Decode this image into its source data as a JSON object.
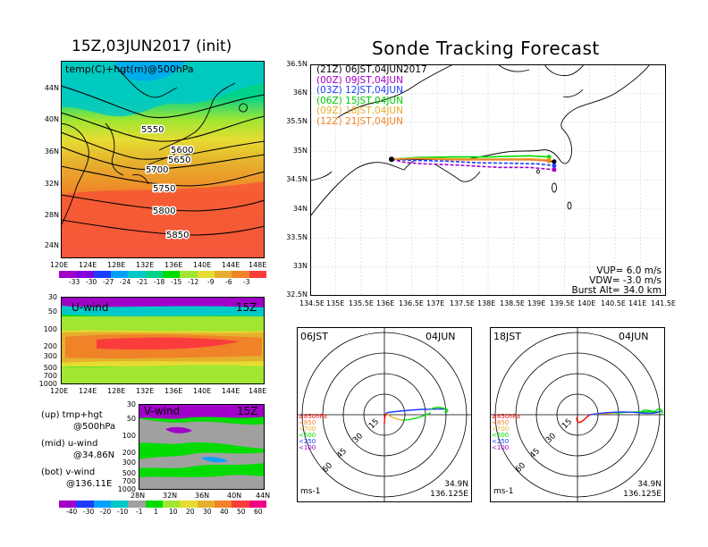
{
  "left_title": "15Z,03JUN2017 (init)",
  "right_title": "Sonde Tracking Forecast",
  "map500": {
    "label": "temp(C)+hgt(m)@500hPa",
    "lat_ticks": [
      "44N",
      "40N",
      "36N",
      "32N",
      "28N",
      "24N"
    ],
    "lon_ticks": [
      "120E",
      "124E",
      "128E",
      "132E",
      "136E",
      "140E",
      "144E",
      "148E"
    ],
    "contours": [
      "5550",
      "5600",
      "5650",
      "5700",
      "5750",
      "5800",
      "5850"
    ],
    "colorbar": [
      "-33",
      "-30",
      "-27",
      "-24",
      "-21",
      "-18",
      "-15",
      "-12",
      "-9",
      "-6",
      "-3"
    ]
  },
  "uwind": {
    "label": "U-wind",
    "time": "15Z",
    "p_ticks": [
      "30",
      "50",
      "100",
      "200",
      "300",
      "500",
      "700",
      "1000"
    ],
    "lon_ticks": [
      "120E",
      "124E",
      "128E",
      "132E",
      "136E",
      "140E",
      "144E",
      "148E"
    ]
  },
  "vwind": {
    "label": "V-wind",
    "time": "15Z",
    "p_ticks": [
      "30",
      "50",
      "100",
      "200",
      "300",
      "500",
      "700",
      "1000"
    ],
    "lat_ticks": [
      "28N",
      "32N",
      "36N",
      "40N",
      "44N"
    ]
  },
  "legend": {
    "up1": "(up) tmp+hgt",
    "up2": "@500hPa",
    "mid1": "(mid) u-wind",
    "mid2": "@34.86N",
    "bot1": "(bot) v-wind",
    "bot2": "@136.11E"
  },
  "wind_colorbar": [
    "-40",
    "-30",
    "-20",
    "-10",
    "-1",
    "1",
    "10",
    "20",
    "30",
    "40",
    "50",
    "60"
  ],
  "track_map": {
    "lat_ticks": [
      "36.5N",
      "36N",
      "35.5N",
      "35N",
      "34.5N",
      "34N",
      "33.5N",
      "33N",
      "32.5N"
    ],
    "lon_ticks": [
      "134.5E",
      "135E",
      "135.5E",
      "136E",
      "136.5E",
      "137E",
      "137.5E",
      "138E",
      "138.5E",
      "139E",
      "139.5E",
      "140E",
      "140.5E",
      "141E",
      "141.5E"
    ],
    "vup": "VUP=  6.0  m/s",
    "vdw": "VDW= -3.0  m/s",
    "burst": "Burst Alt= 34.0  km"
  },
  "chart_data": {
    "type": "line",
    "title": "Sonde Tracking Forecast",
    "xlabel": "",
    "ylabel": "",
    "xlim": [
      134.5,
      141.5
    ],
    "ylim": [
      32.5,
      36.5
    ],
    "series": [
      {
        "name": "(21Z)  06JST,04JUN2017",
        "color": "#000000",
        "x": [
          136.1,
          136.6,
          137.3,
          138.2,
          138.85,
          139.3
        ],
        "y": [
          34.86,
          34.86,
          34.86,
          34.86,
          34.86,
          34.82
        ]
      },
      {
        "name": "(00Z)  09JST,04JUN",
        "color": "#a000c8",
        "x": [
          136.1,
          136.4,
          136.8,
          137.4,
          138.2,
          138.8,
          139.3
        ],
        "y": [
          34.86,
          34.8,
          34.78,
          34.76,
          34.72,
          34.72,
          34.68
        ]
      },
      {
        "name": "(03Z)  12JST,04JUN",
        "color": "#1e3cff",
        "x": [
          136.1,
          136.5,
          137.1,
          137.8,
          138.5,
          139.0,
          139.3
        ],
        "y": [
          34.86,
          34.84,
          34.83,
          34.8,
          34.79,
          34.78,
          34.75
        ]
      },
      {
        "name": "(06Z)  15JST,04JUN",
        "color": "#00dc00",
        "x": [
          136.1,
          136.6,
          137.3,
          138.0,
          138.8,
          139.2
        ],
        "y": [
          34.86,
          34.89,
          34.9,
          34.9,
          34.92,
          34.9
        ]
      },
      {
        "name": "(09Z)  18JST,04JUN",
        "color": "#e6af2d",
        "x": [
          136.1,
          136.6,
          137.3,
          138.0,
          138.8,
          139.2
        ],
        "y": [
          34.86,
          34.88,
          34.87,
          34.86,
          34.87,
          34.85
        ]
      },
      {
        "name": "(12Z)  21JST,04JUN",
        "color": "#f08228",
        "x": [
          136.1,
          136.6,
          137.3,
          138.0,
          138.8,
          139.2
        ],
        "y": [
          34.86,
          34.87,
          34.85,
          34.85,
          34.85,
          34.83
        ]
      }
    ]
  },
  "polar1": {
    "time": "06JST",
    "date": "04JUN",
    "lat": "34.9N",
    "lon": "136.125E",
    "unit": "ms-1",
    "rings": [
      "15",
      "30",
      "45",
      "60"
    ],
    "levels": [
      "≥850hPa",
      "<850",
      "<700",
      "<500",
      "<250",
      "<100"
    ]
  },
  "polar2": {
    "time": "18JST",
    "date": "04JUN",
    "lat": "34.9N",
    "lon": "136.125E",
    "unit": "ms-1",
    "rings": [
      "15",
      "30",
      "45",
      "60"
    ],
    "levels": [
      "≥850hPa",
      "<850",
      "<700",
      "<500",
      "<250",
      "<100"
    ]
  },
  "colors": {
    "level_colors": [
      "#ff0000",
      "#f08228",
      "#e6af2d",
      "#00dc00",
      "#1e3cff",
      "#a000c8"
    ],
    "temp_colorbar": [
      "#a000c8",
      "#8200dc",
      "#1e3cff",
      "#00a0ff",
      "#00c8c8",
      "#00d28c",
      "#00dc00",
      "#a0e632",
      "#e6dc32",
      "#e6af2d",
      "#f08228",
      "#fa3c3c"
    ],
    "wind_colorbar": [
      "#a000c8",
      "#1e3cff",
      "#00a0ff",
      "#00c8c8",
      "#a0a0a0",
      "#00dc00",
      "#a0e632",
      "#e6dc32",
      "#e6af2d",
      "#f08228",
      "#fa3c3c",
      "#f00082"
    ]
  }
}
